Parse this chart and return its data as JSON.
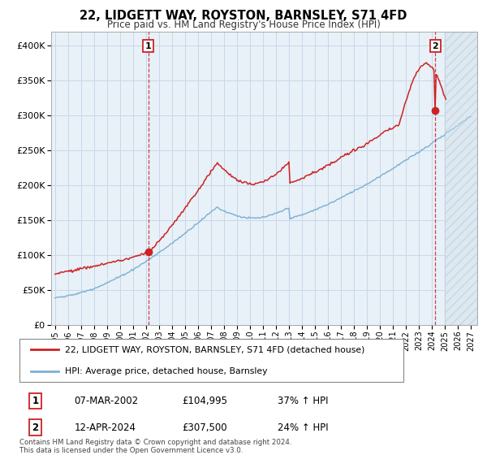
{
  "title": "22, LIDGETT WAY, ROYSTON, BARNSLEY, S71 4FD",
  "subtitle": "Price paid vs. HM Land Registry's House Price Index (HPI)",
  "ylim": [
    0,
    420000
  ],
  "yticks": [
    0,
    50000,
    100000,
    150000,
    200000,
    250000,
    300000,
    350000,
    400000
  ],
  "xlim_start": 1994.7,
  "xlim_end": 2027.5,
  "background_color": "#ffffff",
  "grid_color": "#c8d8e8",
  "plot_bg_color": "#e8f0f8",
  "sale1_date_num": 2002.17,
  "sale1_price": 104995,
  "sale2_date_num": 2024.28,
  "sale2_price": 307500,
  "legend_line1": "22, LIDGETT WAY, ROYSTON, BARNSLEY, S71 4FD (detached house)",
  "legend_line2": "HPI: Average price, detached house, Barnsley",
  "table_row1": [
    "1",
    "07-MAR-2002",
    "£104,995",
    "37% ↑ HPI"
  ],
  "table_row2": [
    "2",
    "12-APR-2024",
    "£307,500",
    "24% ↑ HPI"
  ],
  "footer": "Contains HM Land Registry data © Crown copyright and database right 2024.\nThis data is licensed under the Open Government Licence v3.0.",
  "hpi_color": "#7ab0d4",
  "price_color": "#cc2222",
  "vline_color": "#cc2222",
  "future_start": 2025.0
}
